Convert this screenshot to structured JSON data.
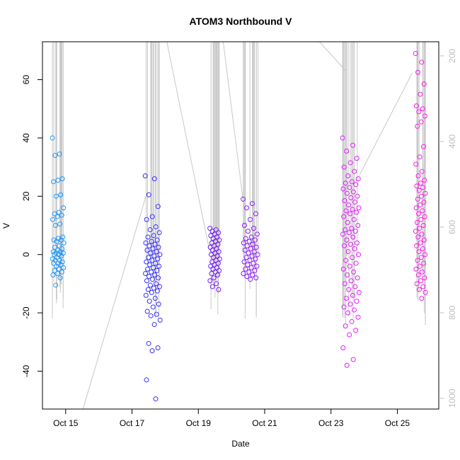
{
  "chart_data": {
    "type": "scatter",
    "title": "ATOM3 Northbound V",
    "xlabel": "Date",
    "ylabel": "V",
    "y_ticks": [
      -40,
      -20,
      0,
      20,
      40,
      60
    ],
    "ylim": [
      -53,
      73
    ],
    "x_ticks": [
      {
        "label": "Oct 15",
        "day": 15
      },
      {
        "label": "Oct 17",
        "day": 17
      },
      {
        "label": "Oct 19",
        "day": 19
      },
      {
        "label": "Oct 21",
        "day": 21
      },
      {
        "label": "Oct 23",
        "day": 23
      },
      {
        "label": "Oct 25",
        "day": 25
      }
    ],
    "xlim_days": [
      14.3,
      26.25
    ],
    "right_axis": {
      "ticks": [
        200,
        400,
        600,
        800,
        1000
      ],
      "ylim_reversed": [
        1025,
        167
      ],
      "color": "#bdbdbd",
      "line_color": "#c8c8c8"
    },
    "color_gradient": [
      "#1ea0ff",
      "#1e3cff",
      "#6a1eff",
      "#a01eff",
      "#e61eff",
      "#ff1ee6"
    ],
    "clusters": [
      {
        "day_start": 14.6,
        "day_end": 14.95,
        "values": [
          40,
          34.5,
          34,
          26,
          25.5,
          25,
          20.5,
          20,
          16,
          14.5,
          14,
          13.5,
          13,
          12,
          10.5,
          10,
          6,
          5.5,
          5,
          5,
          4.5,
          4,
          3,
          2.5,
          2,
          1.5,
          1,
          1,
          0.5,
          0.5,
          0,
          0,
          -0.5,
          -1,
          -1.5,
          -2,
          -2,
          -2.5,
          -3,
          -3,
          -3.5,
          -4,
          -4.5,
          -5,
          -5.5,
          -6,
          -6.5,
          -7,
          -8,
          -10.5
        ]
      },
      {
        "day_start": 17.4,
        "day_end": 17.85,
        "values": [
          27,
          26,
          20.5,
          16.5,
          13,
          12,
          9.5,
          8.5,
          7.5,
          6.5,
          6,
          5,
          4.5,
          4,
          3.5,
          3,
          2.5,
          2,
          1.5,
          1,
          0.5,
          0,
          -0.5,
          -1,
          -1.5,
          -2,
          -2.5,
          -3,
          -3.5,
          -4,
          -4.5,
          -5,
          -5.5,
          -6,
          -6.5,
          -7,
          -7.5,
          -8,
          -8.5,
          -9,
          -10,
          -10.5,
          -11,
          -11.5,
          -12,
          -12.5,
          -13,
          -14,
          -15,
          -16,
          -17,
          -18,
          -19.5,
          -20.5,
          -21,
          -22.5,
          -24,
          -30.5,
          -32,
          -33,
          -43,
          -49.5
        ]
      },
      {
        "day_start": 19.35,
        "day_end": 19.65,
        "values": [
          9,
          8.5,
          8,
          7.5,
          7,
          6.5,
          6,
          5.5,
          5,
          4.5,
          4,
          3.5,
          3,
          2.5,
          2,
          1.5,
          1,
          0.5,
          0,
          -0.5,
          -1,
          -1.5,
          -2,
          -2.5,
          -3,
          -3.5,
          -4,
          -4.5,
          -5,
          -5.5,
          -6,
          -6.5,
          -7,
          -8,
          -9,
          -10,
          -11,
          -12
        ]
      },
      {
        "day_start": 20.35,
        "day_end": 20.8,
        "values": [
          19,
          17.5,
          16,
          14,
          12,
          10,
          9,
          8,
          7,
          6,
          5.5,
          5,
          4.5,
          4,
          3.5,
          3,
          2.5,
          2,
          1.5,
          1,
          0.5,
          0,
          -0.5,
          -1,
          -1.5,
          -2,
          -2.5,
          -3,
          -3.5,
          -4,
          -4.5,
          -5,
          -5.5,
          -6,
          -6.5,
          -7,
          -7.5,
          -8,
          -8.5
        ]
      },
      {
        "day_start": 23.35,
        "day_end": 23.85,
        "values": [
          40,
          37.5,
          35.5,
          33,
          31.5,
          30,
          28.5,
          27,
          26,
          25,
          24.5,
          24,
          23,
          22.5,
          21.5,
          21,
          20,
          19.5,
          18.5,
          18,
          17,
          16,
          15.5,
          15,
          14.5,
          14,
          13,
          12,
          11,
          10,
          9,
          8.5,
          8,
          7.5,
          7,
          6,
          5,
          4,
          3.5,
          3,
          2,
          1,
          0,
          -1,
          -2,
          -3,
          -4,
          -5,
          -6,
          -7,
          -8,
          -9,
          -10,
          -11,
          -12,
          -13,
          -14,
          -15,
          -16,
          -17,
          -18,
          -19,
          -20,
          -21.5,
          -23,
          -24.5,
          -26,
          -27.5,
          -32,
          -36,
          -38
        ]
      },
      {
        "day_start": 25.55,
        "day_end": 25.85,
        "values": [
          69,
          66,
          62.5,
          58.5,
          55,
          51,
          50,
          49,
          47.5,
          45.5,
          44,
          37,
          33.5,
          31,
          28.5,
          27,
          25.5,
          24.5,
          23.5,
          23,
          22,
          21,
          20,
          19,
          18,
          17,
          16,
          15,
          14,
          13,
          12,
          11,
          10,
          9,
          8,
          7,
          6,
          5,
          4,
          3,
          2,
          1,
          0,
          -1,
          -2,
          -3,
          -4,
          -5,
          -6,
          -7,
          -8,
          -9,
          -10,
          -11,
          -12,
          -13,
          -15
        ]
      }
    ],
    "track_segments": [
      {
        "d0": 15.35,
        "v0": 1070,
        "d1": 17.45,
        "v1": 520
      },
      {
        "d0": 18.05,
        "v0": 167,
        "d1": 19.35,
        "v1": 660
      },
      {
        "d0": 19.75,
        "v0": 167,
        "d1": 20.45,
        "v1": 600
      },
      {
        "d0": 22.65,
        "v0": 167,
        "d1": 23.45,
        "v1": 235
      },
      {
        "d0": 23.85,
        "v0": 480,
        "d1": 25.45,
        "v1": 240
      }
    ]
  }
}
